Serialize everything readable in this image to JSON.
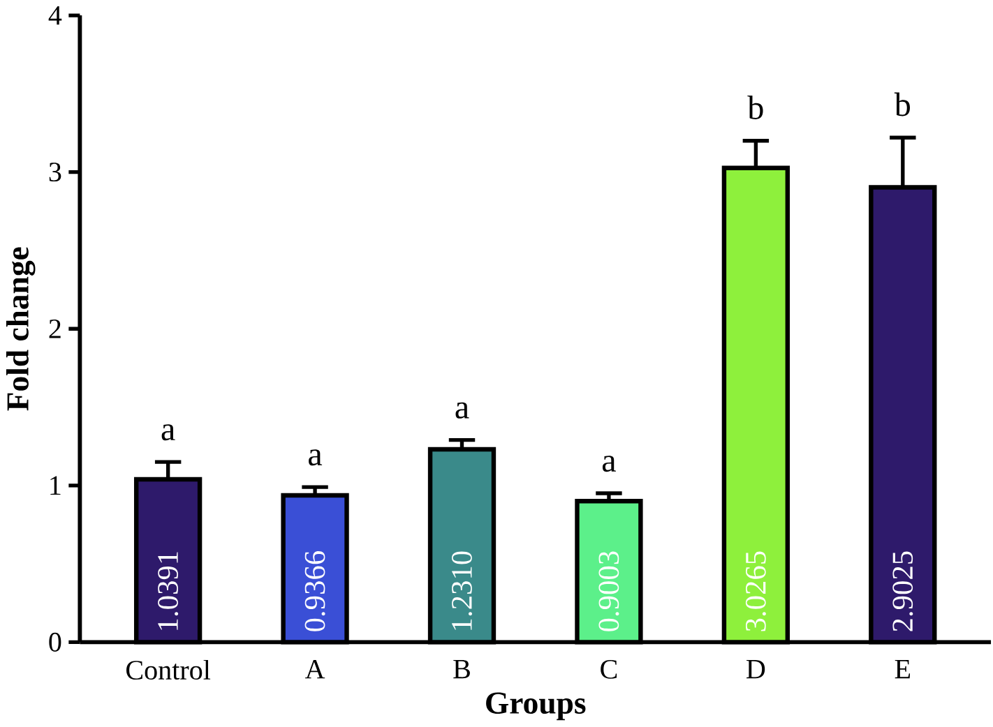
{
  "chart_data": {
    "type": "bar",
    "xlabel": "Groups",
    "ylabel": "Fold change",
    "categories": [
      "Control",
      "A",
      "B",
      "C",
      "D",
      "E"
    ],
    "values": [
      1.0391,
      0.9366,
      1.231,
      0.9003,
      3.0265,
      2.9025
    ],
    "value_labels": [
      "1.0391",
      "0.9366",
      "1.2310",
      "0.9003",
      "3.0265",
      "2.9025"
    ],
    "colors": [
      "#2e1a6b",
      "#3a4fd6",
      "#3a8a8a",
      "#5cf08a",
      "#8ef03c",
      "#2e1a6b"
    ],
    "errors": [
      [
        1.0391,
        1.15
      ],
      [
        0.9366,
        0.99
      ],
      [
        1.231,
        1.29
      ],
      [
        0.9003,
        0.95
      ],
      [
        3.0265,
        3.2
      ],
      [
        2.9025,
        3.22
      ]
    ],
    "annotations": [
      "a",
      "a",
      "a",
      "a",
      "b",
      "b"
    ],
    "ylim": [
      0,
      4
    ],
    "yticks": [
      0,
      1,
      2,
      3,
      4
    ]
  }
}
